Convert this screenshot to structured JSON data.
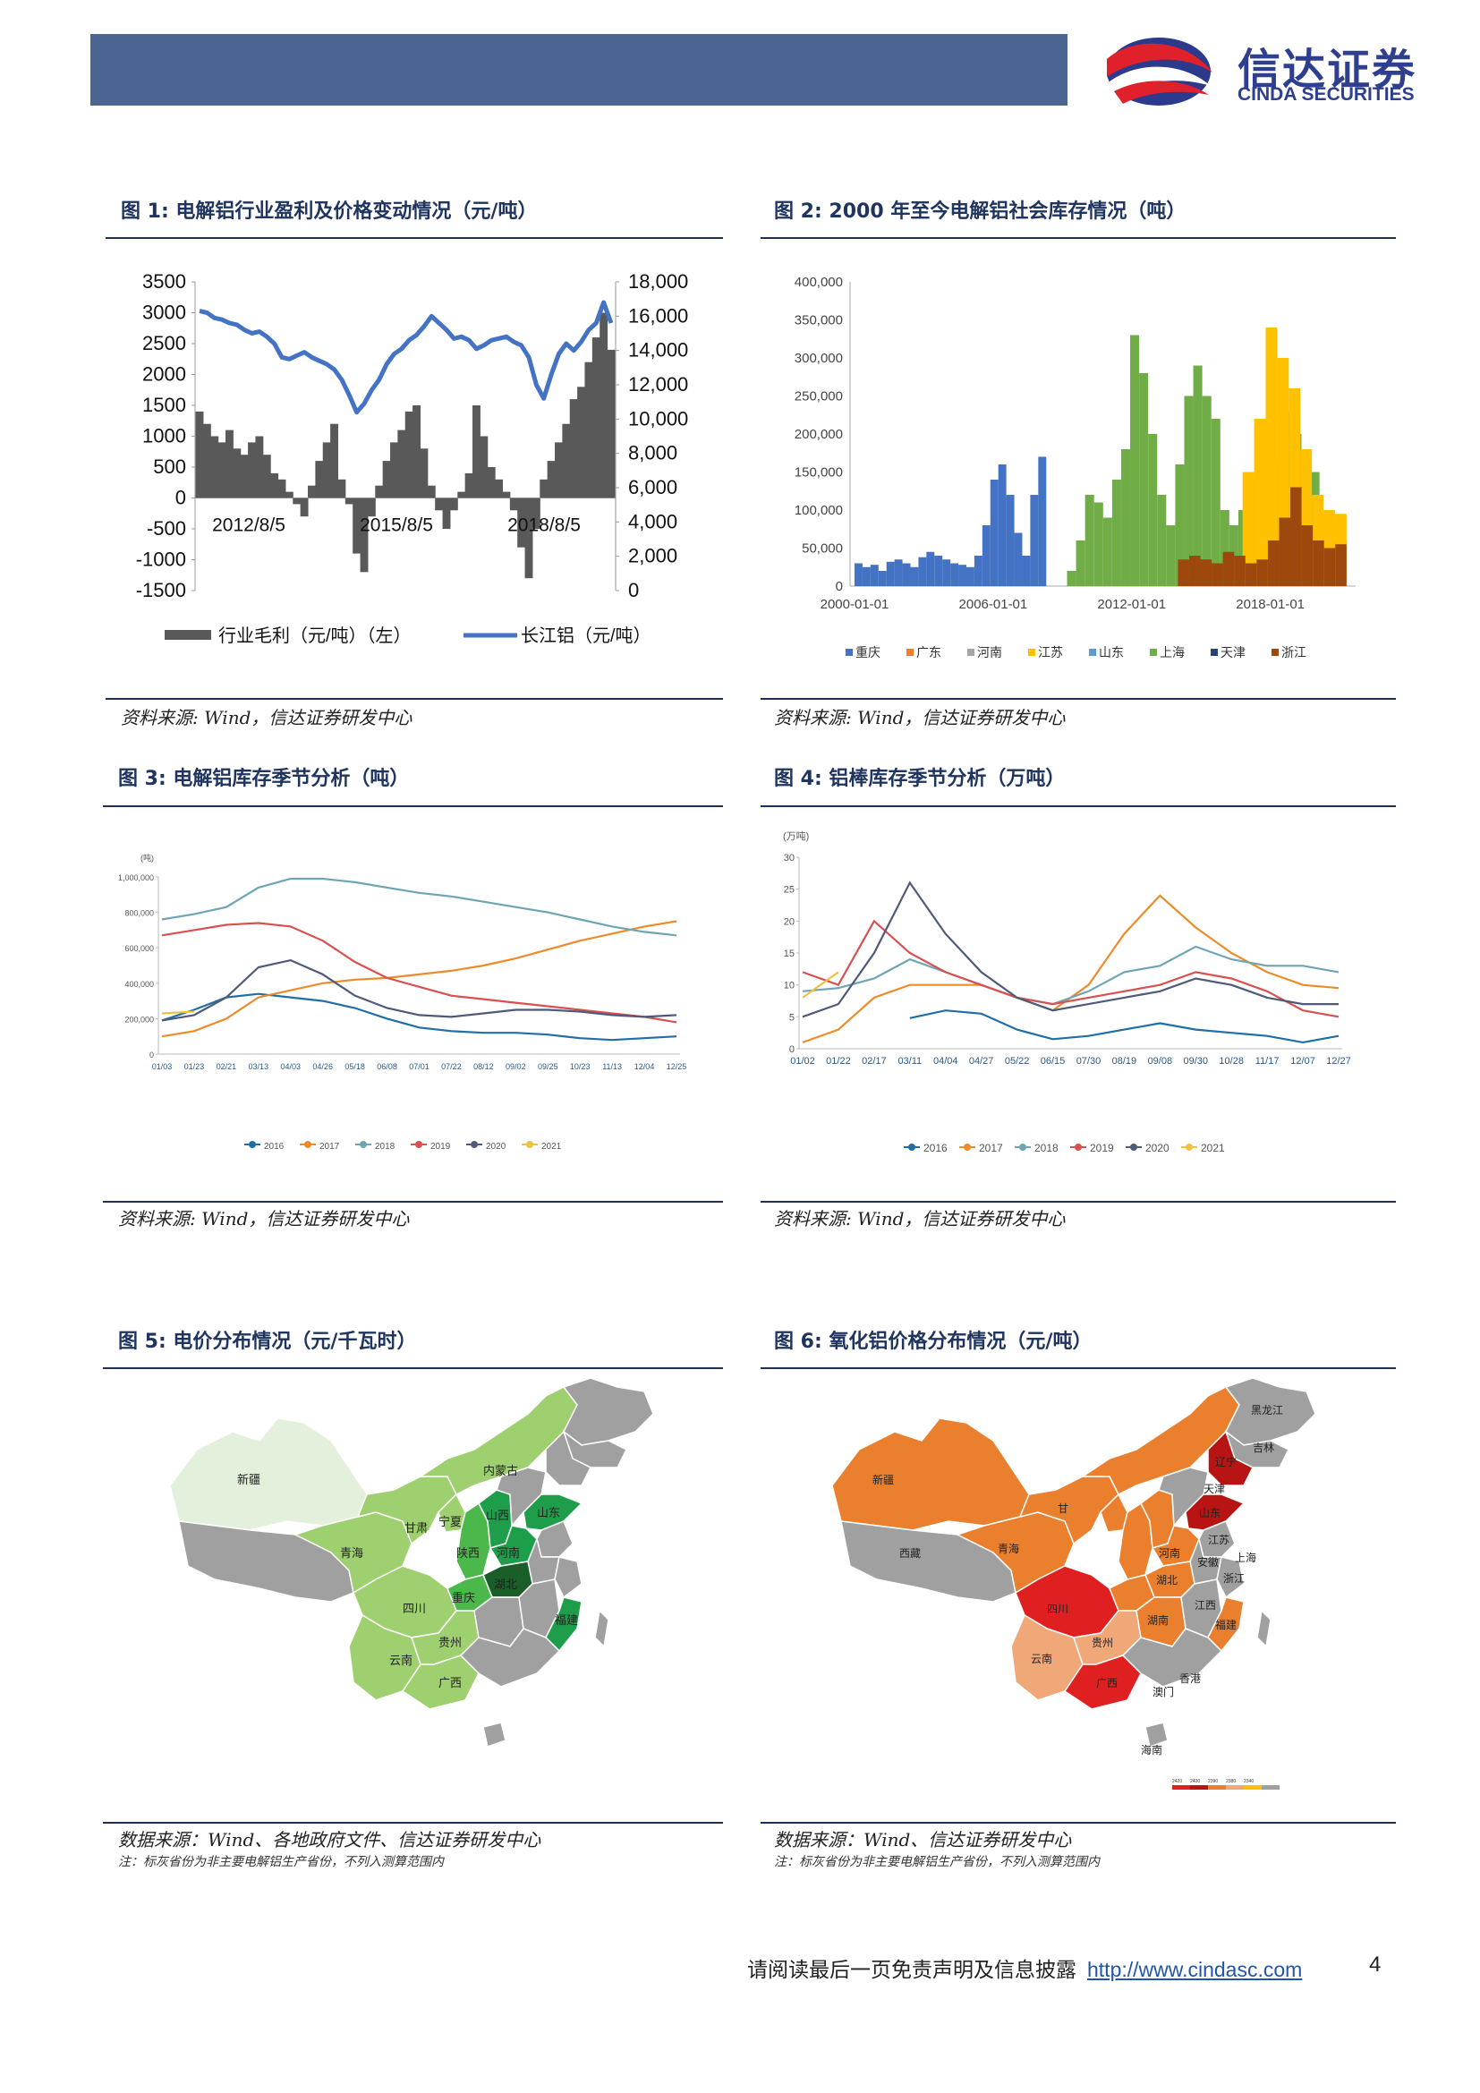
{
  "header": {
    "logo_name": "信达证券",
    "logo_en": "CINDA SECURITIES"
  },
  "figures": {
    "f1": {
      "title": "图 1:  电解铝行业盈利及价格变动情况（元/吨）",
      "source": "资料来源: Wind，信达证券研发中心"
    },
    "f2": {
      "title": "图 2:  2000 年至今电解铝社会库存情况（吨）",
      "source": "资料来源: Wind，信达证券研发中心"
    },
    "f3": {
      "title": "图 3:  电解铝库存季节分析（吨）",
      "source": "资料来源: Wind，信达证券研发中心"
    },
    "f4": {
      "title": "图 4:  铝棒库存季节分析（万吨）",
      "source": "资料来源: Wind，信达证券研发中心"
    },
    "f5": {
      "title": "图 5:  电价分布情况（元/千瓦时）",
      "source": "数据来源：Wind、各地政府文件、信达证券研发中心",
      "note": "注：标灰省份为非主要电解铝生产省份，不列入测算范围内"
    },
    "f6": {
      "title": "图 6:  氧化铝价格分布情况（元/吨）",
      "source": "数据来源：Wind、信达证券研发中心",
      "note": "注：标灰省份为非主要电解铝生产省份，不列入测算范围内"
    }
  },
  "chart_data": [
    {
      "type": "bar+line",
      "y_left_ticks": [
        "3500",
        "3000",
        "2500",
        "2000",
        "1500",
        "1000",
        "500",
        "0",
        "-500",
        "-1000",
        "-1500"
      ],
      "y_left_range": [
        -1500,
        3500
      ],
      "y_right_ticks": [
        "18,000",
        "16,000",
        "14,000",
        "12,000",
        "10,000",
        "8,000",
        "6,000",
        "4,000",
        "2,000",
        "0"
      ],
      "y_right_range": [
        0,
        18000
      ],
      "x_ticks": [
        "2012/8/5",
        "2015/8/5",
        "2018/8/5"
      ],
      "series": [
        {
          "name": "行业毛利（元/吨）（左）",
          "kind": "area",
          "color": "#595959",
          "values": [
            1400,
            1200,
            1000,
            900,
            1100,
            800,
            700,
            900,
            1000,
            700,
            400,
            300,
            100,
            -100,
            -300,
            200,
            600,
            900,
            1200,
            300,
            -100,
            -900,
            -1200,
            -300,
            200,
            600,
            900,
            1100,
            1400,
            1500,
            800,
            200,
            -200,
            -500,
            -200,
            100,
            400,
            1500,
            1000,
            500,
            300,
            100,
            -200,
            -800,
            -1300,
            -500,
            300,
            600,
            900,
            1200,
            1600,
            1800,
            2200,
            2600,
            3000,
            2400
          ]
        },
        {
          "name": "长江铝（元/吨）",
          "kind": "line",
          "color": "#4472c4",
          "values": [
            16300,
            16200,
            15900,
            15800,
            15600,
            15500,
            15200,
            15000,
            15100,
            14800,
            14400,
            13600,
            13500,
            13700,
            13900,
            13600,
            13400,
            13200,
            12900,
            12300,
            11400,
            10400,
            10900,
            11700,
            12300,
            13200,
            13800,
            14100,
            14600,
            14900,
            15400,
            16000,
            15600,
            15200,
            14700,
            14800,
            14600,
            14100,
            14300,
            14600,
            14700,
            14800,
            14500,
            14300,
            13600,
            12000,
            11200,
            12600,
            13800,
            14400,
            14000,
            14500,
            15200,
            15600,
            16800,
            15600
          ]
        }
      ]
    },
    {
      "type": "area",
      "y_ticks": [
        "400,000",
        "350,000",
        "300,000",
        "250,000",
        "200,000",
        "150,000",
        "100,000",
        "50,000",
        "0"
      ],
      "y_range": [
        0,
        400000
      ],
      "x_ticks": [
        "2000-01-01",
        "2006-01-01",
        "2012-01-01",
        "2018-01-01"
      ],
      "legend": [
        {
          "name": "重庆",
          "color": "#4472c4"
        },
        {
          "name": "广东",
          "color": "#ed7d31"
        },
        {
          "name": "河南",
          "color": "#a5a5a5"
        },
        {
          "name": "江苏",
          "color": "#ffc000"
        },
        {
          "name": "山东",
          "color": "#5b9bd5"
        },
        {
          "name": "上海",
          "color": "#70ad47"
        },
        {
          "name": "天津",
          "color": "#264478"
        },
        {
          "name": "浙江",
          "color": "#9e480e"
        }
      ],
      "series": [
        {
          "name": "上海",
          "color": "#4472c4",
          "segment": "2000-2008",
          "values": [
            30000,
            25000,
            28000,
            20000,
            32000,
            35000,
            30000,
            25000,
            38000,
            45000,
            40000,
            35000,
            30000,
            28000,
            25000,
            40000,
            80000,
            140000,
            160000,
            120000,
            70000,
            40000,
            120000,
            170000
          ]
        },
        {
          "name": "上海",
          "color": "#70ad47",
          "segment": "2009-2021",
          "values": [
            20000,
            60000,
            120000,
            110000,
            90000,
            140000,
            180000,
            330000,
            280000,
            200000,
            120000,
            80000,
            160000,
            250000,
            290000,
            250000,
            220000,
            100000,
            80000,
            100000,
            140000,
            110000,
            60000,
            160000,
            230000,
            200000,
            120000,
            150000,
            90000,
            60000,
            60000
          ]
        },
        {
          "name": "浙江",
          "color": "#ffc000",
          "segment": "2016-2021",
          "values": [
            150000,
            220000,
            340000,
            300000,
            260000,
            180000,
            120000,
            100000,
            95000
          ]
        },
        {
          "name": "浙江",
          "color": "#9e480e",
          "segment": "2014-2021",
          "values": [
            35000,
            40000,
            35000,
            30000,
            45000,
            40000,
            30000,
            35000,
            60000,
            90000,
            130000,
            80000,
            60000,
            50000,
            55000
          ]
        }
      ]
    },
    {
      "type": "line",
      "unit": "(吨)",
      "y_ticks": [
        "1,000,000",
        "800,000",
        "600,000",
        "400,000",
        "200,000",
        "0"
      ],
      "y_range": [
        0,
        1000000
      ],
      "x_ticks": [
        "01/03",
        "01/23",
        "02/21",
        "03/13",
        "04/03",
        "04/26",
        "05/18",
        "06/08",
        "07/01",
        "07/22",
        "08/12",
        "09/02",
        "09/25",
        "10/23",
        "11/13",
        "12/04",
        "12/25"
      ],
      "series": [
        {
          "name": "2016",
          "color": "#1f6fa6",
          "values": [
            190000,
            250000,
            320000,
            340000,
            320000,
            300000,
            260000,
            200000,
            150000,
            130000,
            120000,
            120000,
            110000,
            90000,
            80000,
            90000,
            100000
          ]
        },
        {
          "name": "2017",
          "color": "#ed8b2a",
          "values": [
            100000,
            130000,
            200000,
            320000,
            360000,
            400000,
            420000,
            430000,
            450000,
            470000,
            500000,
            540000,
            590000,
            640000,
            680000,
            720000,
            750000
          ]
        },
        {
          "name": "2018",
          "color": "#6ea5b3",
          "values": [
            760000,
            790000,
            830000,
            940000,
            990000,
            990000,
            970000,
            940000,
            910000,
            890000,
            860000,
            830000,
            800000,
            760000,
            720000,
            690000,
            670000
          ]
        },
        {
          "name": "2019",
          "color": "#d95050",
          "values": [
            670000,
            700000,
            730000,
            740000,
            720000,
            640000,
            520000,
            430000,
            380000,
            330000,
            310000,
            290000,
            270000,
            250000,
            230000,
            210000,
            180000
          ]
        },
        {
          "name": "2020",
          "color": "#4d5a7a",
          "values": [
            190000,
            220000,
            320000,
            490000,
            530000,
            450000,
            330000,
            260000,
            220000,
            210000,
            230000,
            250000,
            250000,
            240000,
            220000,
            210000,
            220000
          ]
        },
        {
          "name": "2021",
          "color": "#f0c040",
          "values": [
            230000,
            240000
          ]
        }
      ]
    },
    {
      "type": "line",
      "unit": "(万吨)",
      "y_ticks": [
        "30",
        "25",
        "20",
        "15",
        "10",
        "5",
        "0"
      ],
      "y_range": [
        0,
        30
      ],
      "x_ticks": [
        "01/02",
        "01/22",
        "02/17",
        "03/11",
        "04/04",
        "04/27",
        "05/22",
        "06/15",
        "07/30",
        "08/19",
        "09/08",
        "09/30",
        "10/28",
        "11/17",
        "12/07",
        "12/27"
      ],
      "series": [
        {
          "name": "2016",
          "color": "#1f6fa6",
          "values": [
            null,
            null,
            null,
            4.8,
            6,
            5.5,
            3,
            1.5,
            2,
            3,
            4,
            3,
            2.5,
            2,
            1,
            2
          ]
        },
        {
          "name": "2017",
          "color": "#ed8b2a",
          "values": [
            1,
            3,
            8,
            10,
            10,
            10,
            8,
            6,
            10,
            18,
            24,
            19,
            15,
            12,
            10,
            9.5
          ]
        },
        {
          "name": "2018",
          "color": "#6ea5b3",
          "values": [
            9,
            9.5,
            11,
            14,
            12,
            10,
            8,
            7,
            9,
            12,
            13,
            16,
            14,
            13,
            13,
            12
          ]
        },
        {
          "name": "2019",
          "color": "#d95050",
          "values": [
            12,
            10,
            20,
            15,
            12,
            10,
            8,
            7,
            8,
            9,
            10,
            12,
            11,
            9,
            6,
            5
          ]
        },
        {
          "name": "2020",
          "color": "#4d5a7a",
          "values": [
            5,
            7,
            15,
            26,
            18,
            12,
            8,
            6,
            7,
            8,
            9,
            11,
            10,
            8,
            7,
            7
          ]
        },
        {
          "name": "2021",
          "color": "#f0c040",
          "values": [
            8,
            12,
            null
          ]
        }
      ]
    }
  ],
  "maps": {
    "m5": {
      "provinces": {
        "xinjiang": "新疆",
        "neimenggu": "内蒙古",
        "qinghai": "青海",
        "gansu": "甘肃",
        "ningxia": "宁夏",
        "shanxi": "山西",
        "shaanxi": "陕西",
        "henan": "河南",
        "hubei": "湖北",
        "shandong": "山东",
        "sichuan": "四川",
        "chongqing": "重庆",
        "yunnan": "云南",
        "guizhou": "贵州",
        "guangxi": "广西",
        "fujian": "福建"
      },
      "colors": {
        "very_light": "#e3f0dc",
        "light": "#9fd06f",
        "mid": "#4cb84c",
        "dark": "#1e9e4a",
        "darkest": "#1a5e2a",
        "gray": "#a0a0a0"
      }
    },
    "m6": {
      "provinces": {
        "xinjiang": "新疆",
        "xizang": "西藏",
        "qinghai": "青海",
        "gansu": "甘",
        "sichuan": "四川",
        "yunnan": "云南",
        "guizhou": "贵州",
        "guangxi": "广西",
        "hunan": "湖南",
        "hubei": "湖北",
        "henan": "河南",
        "shandong": "山东",
        "liaoning": "辽宁",
        "heilongjiang": "黑龙江",
        "jilin": "吉林",
        "tianjin": "天津",
        "shanghai": "上海",
        "xianggang": "香港",
        "aomen": "澳门",
        "hainan": "海南",
        "anhui": "安徽",
        "jiangxi": "江西",
        "fujian": "福建",
        "zhejiang": "浙江",
        "jiangsu": "江苏"
      },
      "legend_values": [
        "2420",
        "2400",
        "2390",
        "2380",
        "2340"
      ],
      "colors": {
        "red": "#e02020",
        "dark_red": "#b81414",
        "orange": "#ea7f2e",
        "light_orange": "#f0a878",
        "gray": "#a0a0a0"
      }
    }
  },
  "footer": {
    "disclaimer": "请阅读最后一页免责声明及信息披露",
    "url": "http://www.cindasc.com",
    "page_number": "4"
  }
}
